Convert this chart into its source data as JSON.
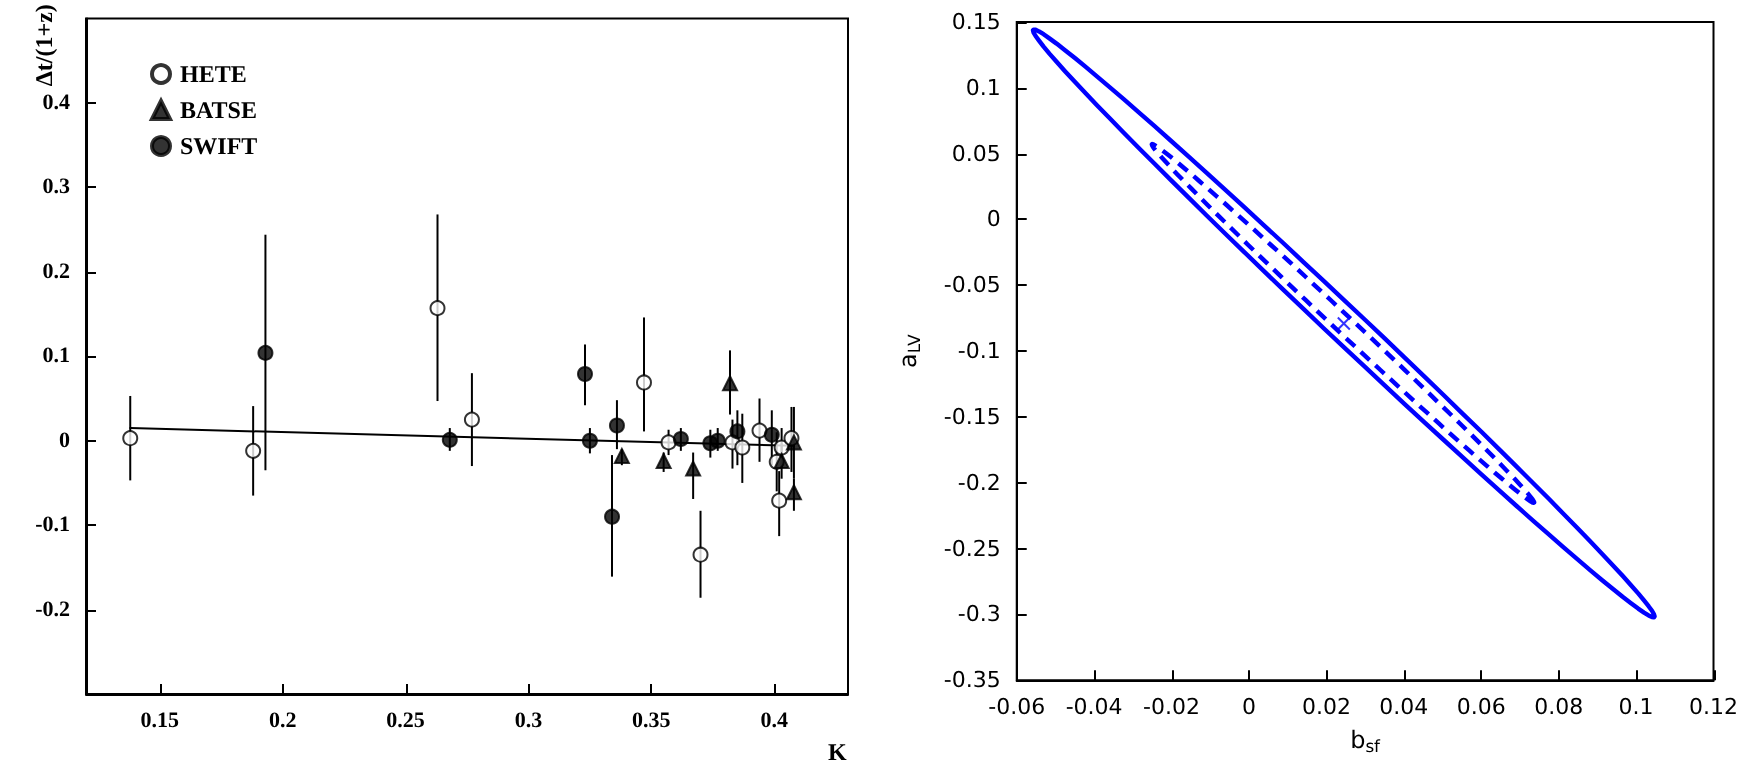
{
  "chart_data": [
    {
      "type": "scatter",
      "xlabel": "K",
      "ylabel": "Δt/(1+z)",
      "xlim": [
        0.12,
        0.43
      ],
      "xticks": [
        0.15,
        0.2,
        0.25,
        0.3,
        0.35,
        0.4
      ],
      "ylim": [
        -0.3,
        0.5
      ],
      "yticks": [
        -0.2,
        -0.1,
        0,
        0.1,
        0.2,
        0.3,
        0.4
      ],
      "grid": false,
      "legend": "top left",
      "series": [
        {
          "name": "HETE",
          "type": "scatter",
          "marker": "circle",
          "color": "#ffffff",
          "x": [
            0.138,
            0.188,
            0.263,
            0.277,
            0.347,
            0.357,
            0.37,
            0.383,
            0.387,
            0.394,
            0.401,
            0.402,
            0.403,
            0.407
          ],
          "values": [
            0.003,
            -0.012,
            0.157,
            0.025,
            0.069,
            -0.002,
            -0.135,
            -0.002,
            -0.008,
            0.012,
            -0.025,
            -0.071,
            -0.008,
            0.003
          ],
          "errors": [
            [
              -0.047,
              0.053
            ],
            [
              -0.065,
              0.041
            ],
            [
              0.047,
              0.268
            ],
            [
              -0.03,
              0.08
            ],
            [
              0.011,
              0.146
            ],
            [
              -0.017,
              0.013
            ],
            [
              -0.186,
              -0.083
            ],
            [
              -0.033,
              0.025
            ],
            [
              -0.05,
              0.032
            ],
            [
              -0.025,
              0.05
            ],
            [
              -0.06,
              0.01
            ],
            [
              -0.113,
              -0.036
            ],
            [
              -0.03,
              0.015
            ],
            [
              -0.037,
              0.04
            ]
          ]
        },
        {
          "name": "BATSE",
          "type": "scatter",
          "marker": "triangle",
          "color": "#000000",
          "x": [
            0.338,
            0.355,
            0.367,
            0.382,
            0.403,
            0.408,
            0.408
          ],
          "values": [
            -0.018,
            -0.024,
            -0.033,
            0.068,
            -0.024,
            -0.061,
            -0.002
          ],
          "errors": [
            [
              -0.029,
              -0.01
            ],
            [
              -0.037,
              -0.014
            ],
            [
              -0.069,
              -0.014
            ],
            [
              0.031,
              0.107
            ],
            [
              -0.045,
              -0.003
            ],
            [
              -0.083,
              -0.045
            ],
            [
              -0.045,
              0.04
            ]
          ]
        },
        {
          "name": "SWIFT",
          "type": "scatter",
          "marker": "circle",
          "color": "#000000",
          "x": [
            0.193,
            0.268,
            0.323,
            0.325,
            0.334,
            0.336,
            0.362,
            0.374,
            0.377,
            0.385,
            0.399
          ],
          "values": [
            0.104,
            0.001,
            0.079,
            0,
            -0.09,
            0.018,
            0.002,
            -0.003,
            0,
            0.011,
            0.007
          ],
          "errors": [
            [
              -0.035,
              0.244
            ],
            [
              -0.012,
              0.015
            ],
            [
              0.042,
              0.114
            ],
            [
              -0.015,
              0.015
            ],
            [
              -0.161,
              -0.017
            ],
            [
              -0.01,
              0.048
            ],
            [
              -0.012,
              0.015
            ],
            [
              -0.02,
              0.013
            ],
            [
              -0.012,
              0.015
            ],
            [
              -0.029,
              0.036
            ],
            [
              -0.029,
              0.036
            ]
          ]
        },
        {
          "type": "line",
          "marker": "none",
          "line_style": "solid",
          "color": "#000000",
          "x": [
            0.138,
            0.408
          ],
          "values": [
            0.015,
            -0.006
          ]
        }
      ]
    },
    {
      "type": "scatter",
      "xlabel": "b$_{sf}$",
      "ylabel": "a$_{LV}$",
      "xlim": [
        -0.06,
        0.12
      ],
      "xticks": [
        -0.06,
        -0.04,
        -0.02,
        0,
        0.02,
        0.04,
        0.06,
        0.08,
        0.1,
        0.12
      ],
      "ylim": [
        -0.35,
        0.15
      ],
      "yticks": [
        -0.35,
        -0.3,
        -0.25,
        -0.2,
        -0.15,
        -0.1,
        -0.05,
        0,
        0.05,
        0.1,
        0.15
      ],
      "grid": false,
      "legend": false,
      "series": [
        {
          "marker": "cross",
          "color": "#0000ff",
          "x": [
            0.0245
          ],
          "values": [
            -0.079
          ]
        }
      ]
    }
  ]
}
